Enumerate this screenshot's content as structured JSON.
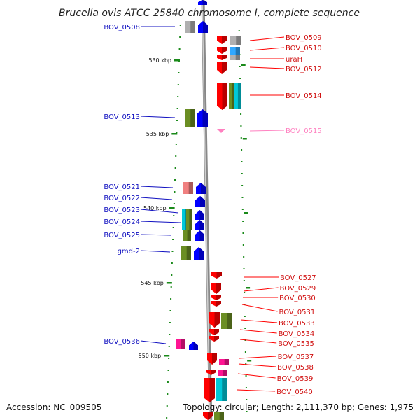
{
  "title": "Brucella ovis ATCC 25840 chromosome I, complete sequence",
  "accession": "Accession: NC_009505",
  "topology": "Topology: circular; Length: 2,111,370 bp; Genes: 1,975",
  "colors": {
    "blue": "#0000ff",
    "red": "#ff0000",
    "pink": "#ff80c0",
    "grey": "#b0b0b0",
    "olive": "#6b8e23",
    "cyan": "#00c8d8",
    "magenta": "#ff1493",
    "salmon": "#f08080",
    "tick": "#1a8a1a"
  },
  "kbp_marks": [
    {
      "label": "530 kbp"
    },
    {
      "label": "535 kbp"
    },
    {
      "label": "540 kbp"
    },
    {
      "label": "545 kbp"
    },
    {
      "label": "550 kbp"
    }
  ],
  "left_labels": [
    {
      "text": "BOV_0508"
    },
    {
      "text": "BOV_0513"
    },
    {
      "text": "BOV_0521"
    },
    {
      "text": "BOV_0522"
    },
    {
      "text": "BOV_0523"
    },
    {
      "text": "BOV_0524"
    },
    {
      "text": "BOV_0525"
    },
    {
      "text": "gmd-2"
    },
    {
      "text": "BOV_0536"
    }
  ],
  "right_labels": [
    {
      "text": "BOV_0509"
    },
    {
      "text": "BOV_0510"
    },
    {
      "text": "uraH"
    },
    {
      "text": "BOV_0512"
    },
    {
      "text": "BOV_0514"
    },
    {
      "text": "BOV_0515"
    },
    {
      "text": "BOV_0527"
    },
    {
      "text": "BOV_0529"
    },
    {
      "text": "BOV_0530"
    },
    {
      "text": "BOV_0531"
    },
    {
      "text": "BOV_0533"
    },
    {
      "text": "BOV_0534"
    },
    {
      "text": "BOV_0535"
    },
    {
      "text": "BOV_0537"
    },
    {
      "text": "BOV_0538"
    },
    {
      "text": "BOV_0539"
    },
    {
      "text": "BOV_0540"
    }
  ]
}
